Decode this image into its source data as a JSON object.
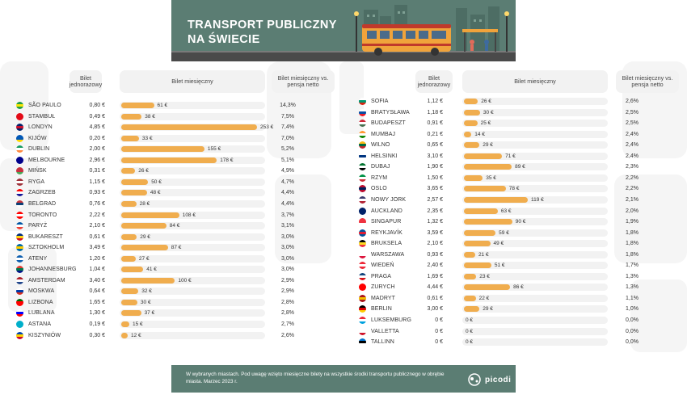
{
  "title": {
    "line1": "TRANSPORT PUBLICZNY",
    "line2": "NA ŚWIECIE"
  },
  "headers": {
    "single_ticket": "Bilet jednorazowy",
    "monthly_ticket": "Bilet miesięczny",
    "monthly_vs_salary": "Bilet miesięczny vs. pensja netto"
  },
  "footer": {
    "note": "W wybranych miastach. Pod uwagę wzięto miesięczne bilety na wszystkie środki transportu publicznego w obrębie miasta. Marzec 2023 r.",
    "brand": "picodi"
  },
  "colors": {
    "banner": "#5b7d73",
    "bar": "#f0ad4e",
    "track": "#f2f2f2"
  },
  "chart_data": {
    "type": "bar",
    "title": "TRANSPORT PUBLICZNY NA ŚWIECIE",
    "value_label": "Bilet miesięczny",
    "unit": "€",
    "rows": [
      {
        "city": "SÃO PAULO",
        "single": "0,80 €",
        "monthly": 61,
        "monthly_label": "61 €",
        "pct": "14,3%",
        "flag": [
          "#229e45",
          "#f8e509",
          "#229e45"
        ]
      },
      {
        "city": "STAMBUŁ",
        "single": "0,49 €",
        "monthly": 38,
        "monthly_label": "38 €",
        "pct": "7,5%",
        "flag": [
          "#e30a17",
          "#e30a17",
          "#e30a17"
        ]
      },
      {
        "city": "LONDYN",
        "single": "4,85 €",
        "monthly": 253,
        "monthly_label": "253 €",
        "pct": "7,4%",
        "flag": [
          "#012169",
          "#c8102e",
          "#012169"
        ]
      },
      {
        "city": "KIJÓW",
        "single": "0,20 €",
        "monthly": 33,
        "monthly_label": "33 €",
        "pct": "7,0%",
        "flag": [
          "#0057b7",
          "#0057b7",
          "#ffd700"
        ]
      },
      {
        "city": "DUBLIN",
        "single": "2,00 €",
        "monthly": 155,
        "monthly_label": "155 €",
        "pct": "5,2%",
        "flag": [
          "#169b62",
          "#ffffff",
          "#ff883e"
        ]
      },
      {
        "city": "MELBOURNE",
        "single": "2,96 €",
        "monthly": 178,
        "monthly_label": "178 €",
        "pct": "5,1%",
        "flag": [
          "#00008b",
          "#00008b",
          "#00008b"
        ]
      },
      {
        "city": "MIŃSK",
        "single": "0,31 €",
        "monthly": 26,
        "monthly_label": "26 €",
        "pct": "4,9%",
        "flag": [
          "#c8313e",
          "#c8313e",
          "#4aa657"
        ]
      },
      {
        "city": "RYGA",
        "single": "1,15 €",
        "monthly": 50,
        "monthly_label": "50 €",
        "pct": "4,7%",
        "flag": [
          "#9e3039",
          "#ffffff",
          "#9e3039"
        ]
      },
      {
        "city": "ZAGRZEB",
        "single": "0,93 €",
        "monthly": 48,
        "monthly_label": "48 €",
        "pct": "4,4%",
        "flag": [
          "#ff0000",
          "#ffffff",
          "#171796"
        ]
      },
      {
        "city": "BELGRAD",
        "single": "0,76 €",
        "monthly": 28,
        "monthly_label": "28 €",
        "pct": "4,4%",
        "flag": [
          "#c6363c",
          "#0c4076",
          "#ffffff"
        ]
      },
      {
        "city": "TORONTO",
        "single": "2,22 €",
        "monthly": 108,
        "monthly_label": "108 €",
        "pct": "3,7%",
        "flag": [
          "#ff0000",
          "#ffffff",
          "#ff0000"
        ]
      },
      {
        "city": "PARYŻ",
        "single": "2,10 €",
        "monthly": 84,
        "monthly_label": "84 €",
        "pct": "3,1%",
        "flag": [
          "#0055a4",
          "#ffffff",
          "#ef4135"
        ]
      },
      {
        "city": "BUKARESZT",
        "single": "0,61 €",
        "monthly": 29,
        "monthly_label": "29 €",
        "pct": "3,0%",
        "flag": [
          "#002b7f",
          "#fcd116",
          "#ce1126"
        ]
      },
      {
        "city": "SZTOKHOLM",
        "single": "3,49 €",
        "monthly": 87,
        "monthly_label": "87 €",
        "pct": "3,0%",
        "flag": [
          "#006aa7",
          "#fecc00",
          "#006aa7"
        ]
      },
      {
        "city": "ATENY",
        "single": "1,20 €",
        "monthly": 27,
        "monthly_label": "27 €",
        "pct": "3,0%",
        "flag": [
          "#0d5eaf",
          "#ffffff",
          "#0d5eaf"
        ]
      },
      {
        "city": "JOHANNESBURG",
        "single": "1,04 €",
        "monthly": 41,
        "monthly_label": "41 €",
        "pct": "3,0%",
        "flag": [
          "#e03c31",
          "#007749",
          "#001489"
        ]
      },
      {
        "city": "AMSTERDAM",
        "single": "3,40 €",
        "monthly": 100,
        "monthly_label": "100 €",
        "pct": "2,9%",
        "flag": [
          "#ae1c28",
          "#ffffff",
          "#21468b"
        ]
      },
      {
        "city": "MOSKWA",
        "single": "0,64 €",
        "monthly": 32,
        "monthly_label": "32 €",
        "pct": "2,9%",
        "flag": [
          "#ffffff",
          "#0039a6",
          "#d52b1e"
        ]
      },
      {
        "city": "LIZBONA",
        "single": "1,65 €",
        "monthly": 30,
        "monthly_label": "30 €",
        "pct": "2,8%",
        "flag": [
          "#006600",
          "#ff0000",
          "#ff0000"
        ]
      },
      {
        "city": "LUBLANA",
        "single": "1,30 €",
        "monthly": 37,
        "monthly_label": "37 €",
        "pct": "2,8%",
        "flag": [
          "#ffffff",
          "#0000ff",
          "#ff0000"
        ]
      },
      {
        "city": "ASTANA",
        "single": "0,19 €",
        "monthly": 15,
        "monthly_label": "15 €",
        "pct": "2,7%",
        "flag": [
          "#00afca",
          "#00afca",
          "#00afca"
        ]
      },
      {
        "city": "KISZYNIÓW",
        "single": "0,30 €",
        "monthly": 12,
        "monthly_label": "12 €",
        "pct": "2,6%",
        "flag": [
          "#0046ae",
          "#ffd200",
          "#cc092f"
        ]
      },
      {
        "city": "SOFIA",
        "single": "1,12 €",
        "monthly": 26,
        "monthly_label": "26 €",
        "pct": "2,6%",
        "flag": [
          "#ffffff",
          "#00966e",
          "#d62612"
        ]
      },
      {
        "city": "BRATYSŁAWA",
        "single": "1,18 €",
        "monthly": 30,
        "monthly_label": "30 €",
        "pct": "2,5%",
        "flag": [
          "#ffffff",
          "#0b4ea2",
          "#ee1c25"
        ]
      },
      {
        "city": "BUDAPESZT",
        "single": "0,91 €",
        "monthly": 25,
        "monthly_label": "25 €",
        "pct": "2,5%",
        "flag": [
          "#ce2939",
          "#ffffff",
          "#477050"
        ]
      },
      {
        "city": "MUMBAJ",
        "single": "0,21 €",
        "monthly": 14,
        "monthly_label": "14 €",
        "pct": "2,4%",
        "flag": [
          "#ff9933",
          "#ffffff",
          "#138808"
        ]
      },
      {
        "city": "WILNO",
        "single": "0,65 €",
        "monthly": 29,
        "monthly_label": "29 €",
        "pct": "2,4%",
        "flag": [
          "#fdb913",
          "#006a44",
          "#c1272d"
        ]
      },
      {
        "city": "HELSINKI",
        "single": "3,10 €",
        "monthly": 71,
        "monthly_label": "71 €",
        "pct": "2,4%",
        "flag": [
          "#ffffff",
          "#003580",
          "#ffffff"
        ]
      },
      {
        "city": "DUBAJ",
        "single": "1,90 €",
        "monthly": 89,
        "monthly_label": "89 €",
        "pct": "2,3%",
        "flag": [
          "#00732f",
          "#ffffff",
          "#000000"
        ]
      },
      {
        "city": "RZYM",
        "single": "1,50 €",
        "monthly": 35,
        "monthly_label": "35 €",
        "pct": "2,2%",
        "flag": [
          "#009246",
          "#ffffff",
          "#ce2b37"
        ]
      },
      {
        "city": "OSLO",
        "single": "3,65 €",
        "monthly": 78,
        "monthly_label": "78 €",
        "pct": "2,2%",
        "flag": [
          "#ba0c2f",
          "#00205b",
          "#ba0c2f"
        ]
      },
      {
        "city": "NOWY JORK",
        "single": "2,57 €",
        "monthly": 119,
        "monthly_label": "119 €",
        "pct": "2,1%",
        "flag": [
          "#3c3b6e",
          "#ffffff",
          "#b22234"
        ]
      },
      {
        "city": "AUCKLAND",
        "single": "2,35 €",
        "monthly": 63,
        "monthly_label": "63 €",
        "pct": "2,0%",
        "flag": [
          "#012169",
          "#012169",
          "#012169"
        ]
      },
      {
        "city": "SINGAPUR",
        "single": "1,32 €",
        "monthly": 90,
        "monthly_label": "90 €",
        "pct": "1,9%",
        "flag": [
          "#ef3340",
          "#ef3340",
          "#ffffff"
        ]
      },
      {
        "city": "REYKJAVÍK",
        "single": "3,59 €",
        "monthly": 59,
        "monthly_label": "59 €",
        "pct": "1,8%",
        "flag": [
          "#02529c",
          "#dc1e35",
          "#02529c"
        ]
      },
      {
        "city": "BRUKSELA",
        "single": "2,10 €",
        "monthly": 49,
        "monthly_label": "49 €",
        "pct": "1,8%",
        "flag": [
          "#000000",
          "#fdda24",
          "#ef3340"
        ]
      },
      {
        "city": "WARSZAWA",
        "single": "0,93 €",
        "monthly": 21,
        "monthly_label": "21 €",
        "pct": "1,8%",
        "flag": [
          "#ffffff",
          "#ffffff",
          "#dc143c"
        ]
      },
      {
        "city": "WIEDEŃ",
        "single": "2,40 €",
        "monthly": 51,
        "monthly_label": "51 €",
        "pct": "1,7%",
        "flag": [
          "#ed2939",
          "#ffffff",
          "#ed2939"
        ]
      },
      {
        "city": "PRAGA",
        "single": "1,69 €",
        "monthly": 23,
        "monthly_label": "23 €",
        "pct": "1,3%",
        "flag": [
          "#11457e",
          "#ffffff",
          "#d7141a"
        ]
      },
      {
        "city": "ZURYCH",
        "single": "4,44 €",
        "monthly": 86,
        "monthly_label": "86 €",
        "pct": "1,3%",
        "flag": [
          "#ff0000",
          "#ff0000",
          "#ff0000"
        ]
      },
      {
        "city": "MADRYT",
        "single": "0,61 €",
        "monthly": 22,
        "monthly_label": "22 €",
        "pct": "1,1%",
        "flag": [
          "#aa151b",
          "#f1bf00",
          "#aa151b"
        ]
      },
      {
        "city": "BERLIN",
        "single": "3,00 €",
        "monthly": 29,
        "monthly_label": "29 €",
        "pct": "1,0%",
        "flag": [
          "#000000",
          "#dd0000",
          "#ffce00"
        ]
      },
      {
        "city": "LUKSEMBURG",
        "single": "0 €",
        "monthly": 0,
        "monthly_label": "0 €",
        "pct": "0,0%",
        "flag": [
          "#ed2939",
          "#ffffff",
          "#00a1de"
        ]
      },
      {
        "city": "VALLETTA",
        "single": "0 €",
        "monthly": 0,
        "monthly_label": "0 €",
        "pct": "0,0%",
        "flag": [
          "#ffffff",
          "#ffffff",
          "#cf142b"
        ]
      },
      {
        "city": "TALLINN",
        "single": "0 €",
        "monthly": 0,
        "monthly_label": "0 €",
        "pct": "0,0%",
        "flag": [
          "#0072ce",
          "#000000",
          "#ffffff"
        ]
      }
    ]
  }
}
